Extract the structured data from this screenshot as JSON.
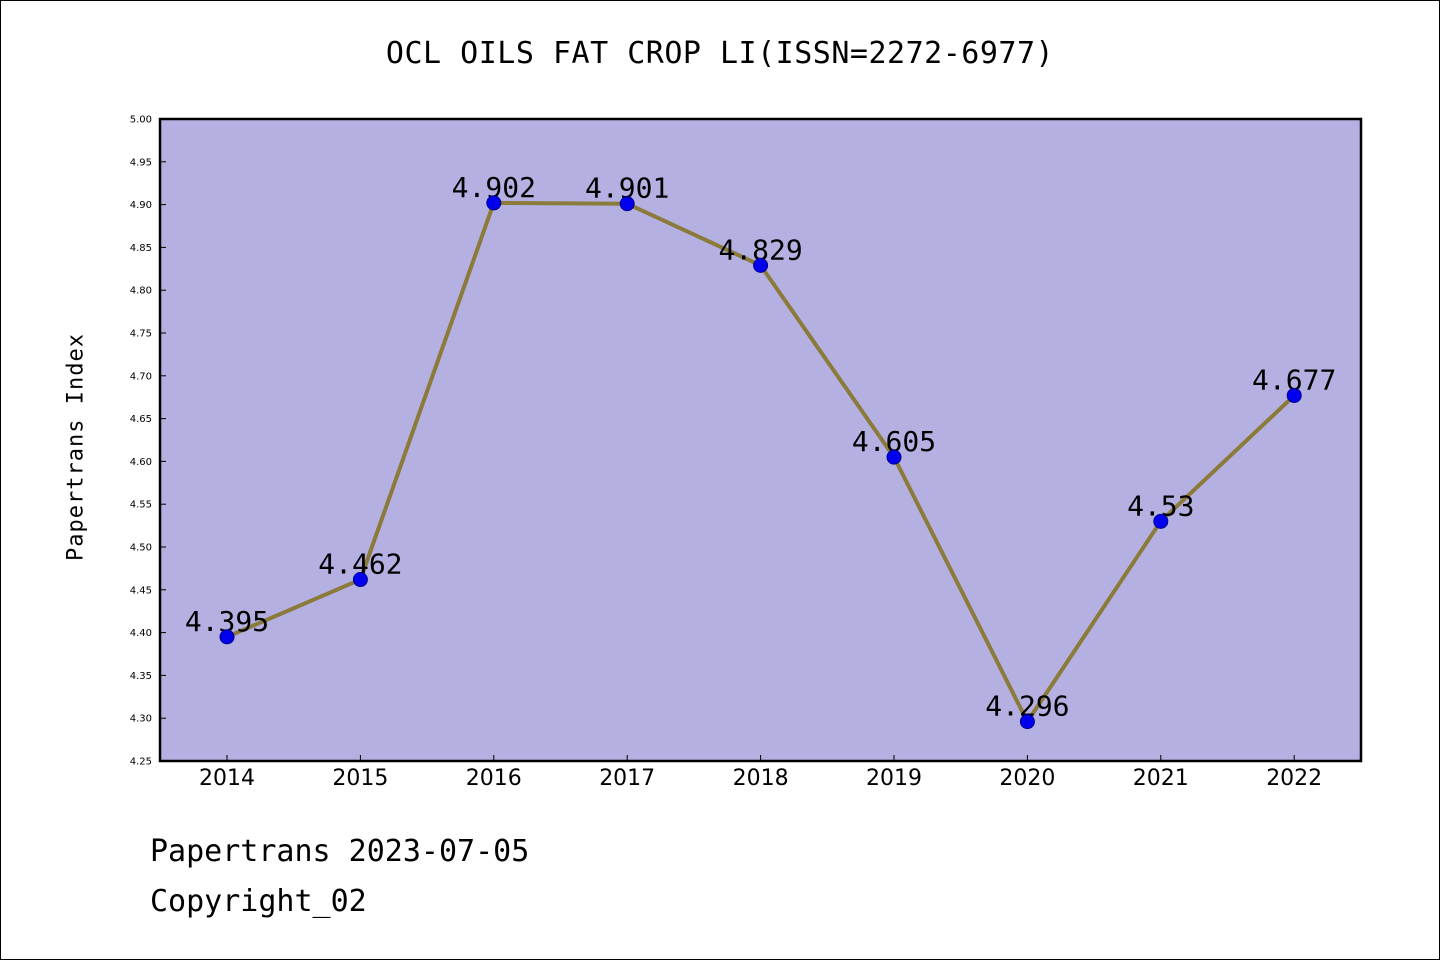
{
  "header": {
    "title": "OCL OILS FAT CROP LI(ISSN=2272-6977)"
  },
  "footer": {
    "line1": "Papertrans 2023-07-05",
    "line2": "Copyright_02"
  },
  "colors": {
    "plot_background": "#b5b0e2",
    "line": "#8b7a3a",
    "marker": "#0000ee",
    "marker_edge": "#00008b"
  },
  "chart_data": {
    "type": "line",
    "title": "OCL OILS FAT CROP LI(ISSN=2272-6977)",
    "xlabel": "",
    "ylabel": "Papertrans Index",
    "categories": [
      "2014",
      "2015",
      "2016",
      "2017",
      "2018",
      "2019",
      "2020",
      "2021",
      "2022"
    ],
    "values": [
      4.395,
      4.462,
      4.902,
      4.901,
      4.829,
      4.605,
      4.296,
      4.53,
      4.677
    ],
    "data_labels": [
      "4.395",
      "4.462",
      "4.902",
      "4.901",
      "4.829",
      "4.605",
      "4.296",
      "4.53",
      "4.677"
    ],
    "ylim": [
      4.25,
      5.0
    ],
    "yticks": [
      "4.25",
      "4.30",
      "4.35",
      "4.40",
      "4.45",
      "4.50",
      "4.55",
      "4.60",
      "4.65",
      "4.70",
      "4.75",
      "4.80",
      "4.85",
      "4.90",
      "4.95",
      "5.00"
    ],
    "grid": false,
    "legend": "none"
  }
}
